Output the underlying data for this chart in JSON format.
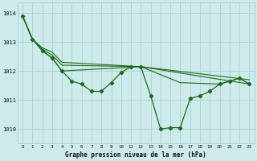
{
  "xlabel": "Graphe pression niveau de la mer (hPa)",
  "xlim": [
    -0.5,
    23.5
  ],
  "ylim": [
    1009.5,
    1014.35
  ],
  "yticks": [
    1010,
    1011,
    1012,
    1013,
    1014
  ],
  "xticks": [
    0,
    1,
    2,
    3,
    4,
    5,
    6,
    7,
    8,
    9,
    10,
    11,
    12,
    13,
    14,
    15,
    16,
    17,
    18,
    19,
    20,
    21,
    22,
    23
  ],
  "background_color": "#ceeaea",
  "grid_color": "#aed4d4",
  "line_color": "#1a6b1a",
  "series": [
    {
      "x": [
        0,
        1,
        2,
        3,
        4,
        5,
        6,
        7,
        8,
        9,
        10,
        11,
        12,
        13,
        14,
        15,
        16,
        17,
        18,
        19,
        20,
        21,
        22,
        23
      ],
      "y": [
        1013.9,
        1013.1,
        1012.7,
        1012.45,
        1012.0,
        1011.65,
        1011.55,
        1011.3,
        1011.3,
        1011.6,
        1011.95,
        1012.15,
        1012.15,
        1011.15,
        1010.0,
        1010.05,
        1010.05,
        1011.05,
        1011.15,
        1011.3,
        1011.55,
        1011.65,
        1011.75,
        1011.55
      ]
    },
    {
      "x": [
        0,
        1,
        2,
        3,
        4,
        12,
        23
      ],
      "y": [
        1013.9,
        1013.1,
        1012.8,
        1012.65,
        1012.3,
        1012.15,
        1011.7
      ]
    },
    {
      "x": [
        0,
        1,
        2,
        3,
        4,
        12,
        23
      ],
      "y": [
        1013.9,
        1013.1,
        1012.75,
        1012.55,
        1012.2,
        1012.15,
        1011.55
      ]
    },
    {
      "x": [
        0,
        1,
        2,
        3,
        4,
        12,
        16,
        20,
        21,
        22,
        23
      ],
      "y": [
        1013.9,
        1013.1,
        1012.7,
        1012.45,
        1012.0,
        1012.15,
        1011.6,
        1011.55,
        1011.65,
        1011.75,
        1011.55
      ]
    }
  ]
}
